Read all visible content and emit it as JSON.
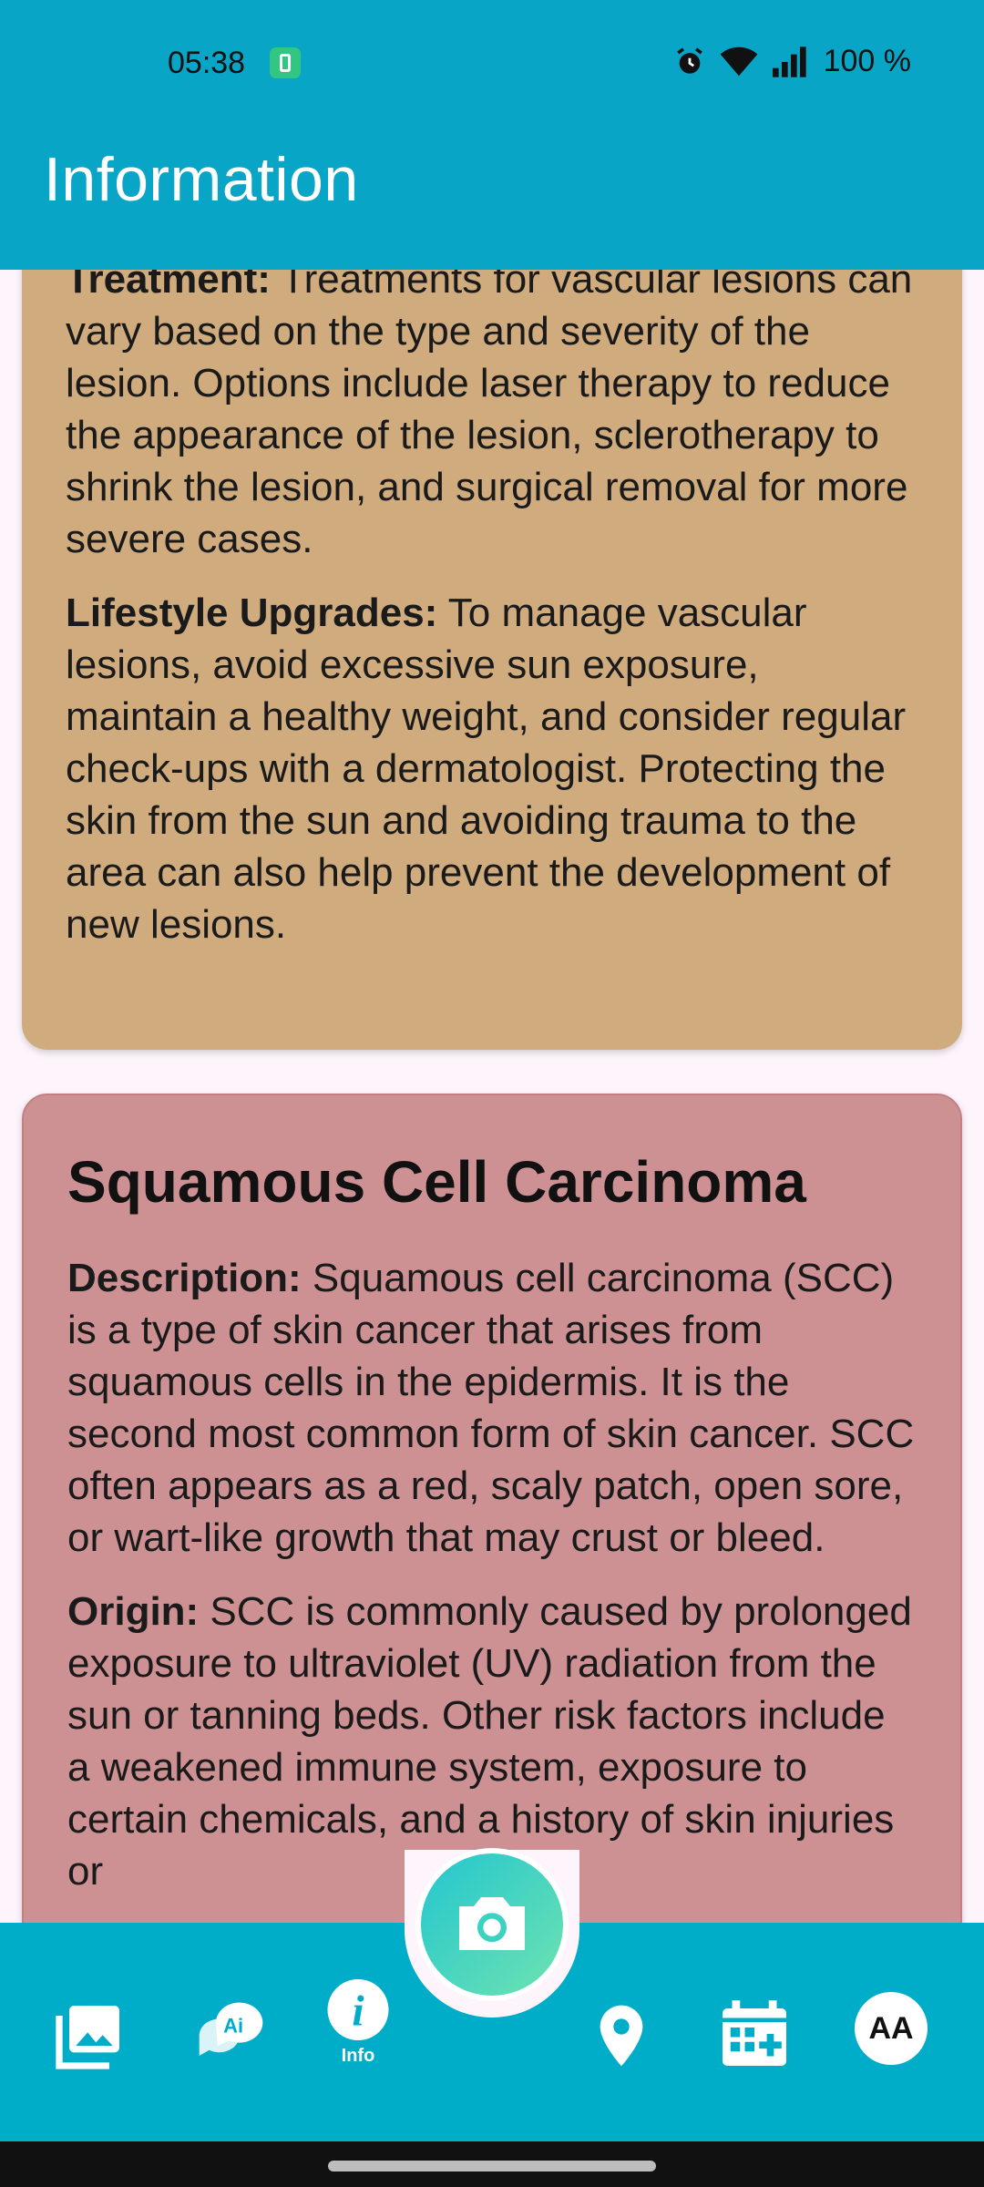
{
  "status_bar": {
    "time": "05:38",
    "battery": "100 %"
  },
  "app_bar": {
    "title": "Information"
  },
  "cards": [
    {
      "paragraphs": [
        {
          "label": "Treatment:",
          "text": " Treatments for vascular lesions can vary based on the type and severity of the lesion. Options include laser therapy to reduce the appearance of the lesion, sclerotherapy to shrink the lesion, and surgical removal for more severe cases."
        },
        {
          "label": "Lifestyle Upgrades:",
          "text": " To manage vascular lesions, avoid excessive sun exposure, maintain a healthy weight, and consider regular check-ups with a dermatologist. Protecting the skin from the sun and avoiding trauma to the area can also help prevent the development of new lesions."
        }
      ]
    },
    {
      "title": "Squamous Cell Carcinoma",
      "paragraphs": [
        {
          "label": "Description:",
          "text": " Squamous cell carcinoma (SCC) is a type of skin cancer that arises from squamous cells in the epidermis. It is the second most common form of skin cancer. SCC often appears as a red, scaly patch, open sore, or wart-like growth that may crust or bleed."
        },
        {
          "label": "Origin:",
          "text": " SCC is commonly caused by prolonged exposure to ultraviolet (UV) radiation from the sun or tanning beds. Other risk factors include a weakened immune system, exposure to certain chemicals, and a history of skin injuries or"
        }
      ]
    }
  ],
  "bottom_nav": {
    "info_label": "Info",
    "font_button_label": "AA",
    "icons": [
      "gallery-icon",
      "ai-chat-icon",
      "info-icon",
      "camera-icon",
      "location-icon",
      "calendar-add-icon"
    ]
  },
  "colors": {
    "header": "#08a5c6",
    "card_tan": "#cfab7d",
    "card_rose": "#cd9193",
    "nav": "#00adc9"
  }
}
